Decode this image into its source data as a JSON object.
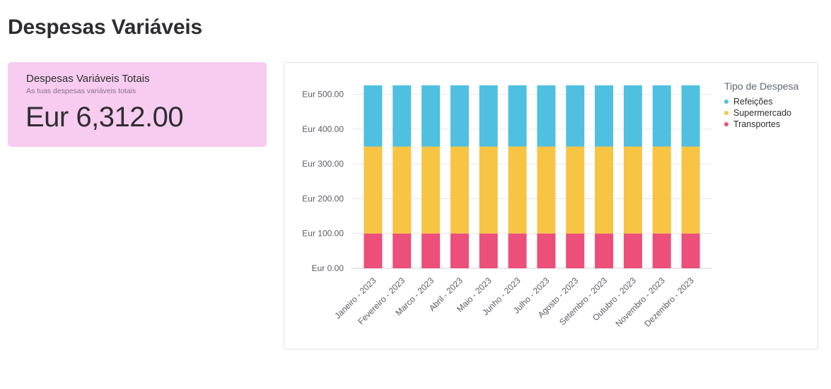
{
  "page": {
    "title": "Despesas Variáveis"
  },
  "kpi": {
    "title": "Despesas Variáveis Totais",
    "subtitle": "As tuas despesas variáveis totais",
    "value": "Eur 6,312.00"
  },
  "legend": {
    "title": "Tipo de Despesa",
    "items": [
      {
        "label": "Refeições",
        "color": "#4fc0e0"
      },
      {
        "label": "Supermercado",
        "color": "#f8c444"
      },
      {
        "label": "Transportes",
        "color": "#ec4f7a"
      }
    ]
  },
  "chart_data": {
    "type": "bar",
    "stacked": true,
    "categories": [
      "Janeiro - 2023",
      "Fevereiro - 2023",
      "Marco - 2023",
      "Abril - 2023",
      "Maio - 2023",
      "Junho - 2023",
      "Julho - 2023",
      "Agosto - 2023",
      "Setembro - 2023",
      "Outubro - 2023",
      "Novembro - 2023",
      "Dezembro - 2023"
    ],
    "series": [
      {
        "name": "Transportes",
        "color": "#ec4f7a",
        "values": [
          100,
          100,
          100,
          100,
          100,
          100,
          100,
          100,
          100,
          100,
          100,
          100
        ]
      },
      {
        "name": "Supermercado",
        "color": "#f8c444",
        "values": [
          250,
          250,
          250,
          250,
          250,
          250,
          250,
          250,
          250,
          250,
          250,
          250
        ]
      },
      {
        "name": "Refeições",
        "color": "#4fc0e0",
        "values": [
          176,
          176,
          176,
          176,
          176,
          176,
          176,
          176,
          176,
          176,
          176,
          176
        ]
      }
    ],
    "yticks": [
      "Eur 0.00",
      "Eur 100.00",
      "Eur 200.00",
      "Eur 300.00",
      "Eur 400.00",
      "Eur 500.00"
    ],
    "ylim": [
      0,
      550
    ],
    "grid": true,
    "legend_position": "right"
  }
}
